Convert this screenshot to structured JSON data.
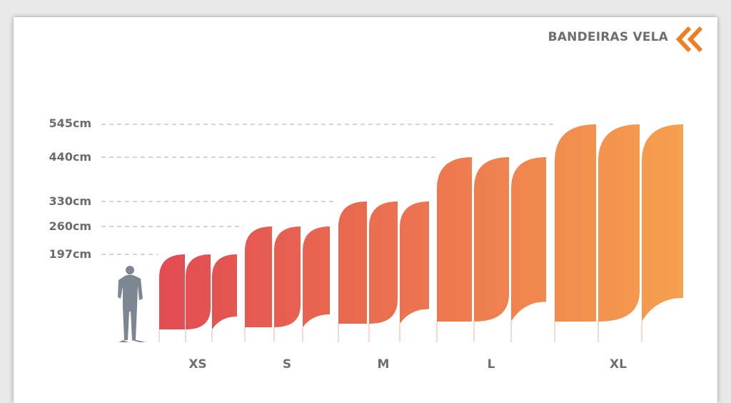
{
  "brand": {
    "title": "BANDEIRAS VELA",
    "logo_icon": "double-chevron-left-icon",
    "logo_color": "#f07d22"
  },
  "height_labels": [
    "545cm",
    "440cm",
    "330cm",
    "260cm",
    "197cm"
  ],
  "sizes": [
    {
      "label": "XS",
      "height_cm": 197,
      "flag_shapes": [
        "straight",
        "convex",
        "concave"
      ]
    },
    {
      "label": "S",
      "height_cm": 260,
      "flag_shapes": [
        "straight",
        "convex",
        "concave"
      ]
    },
    {
      "label": "M",
      "height_cm": 330,
      "flag_shapes": [
        "straight",
        "convex",
        "concave"
      ]
    },
    {
      "label": "L",
      "height_cm": 440,
      "flag_shapes": [
        "straight",
        "convex",
        "concave"
      ]
    },
    {
      "label": "XL",
      "height_cm": 545,
      "flag_shapes": [
        "straight",
        "convex",
        "concave"
      ]
    }
  ],
  "person_icon": "standing-man-silhouette-icon",
  "colors": {
    "gradient_start": "#e24a52",
    "gradient_end": "#f6a04d",
    "person": "#7d8792",
    "label": "#6b6b6b",
    "guide_line": "#a8a8a8"
  }
}
